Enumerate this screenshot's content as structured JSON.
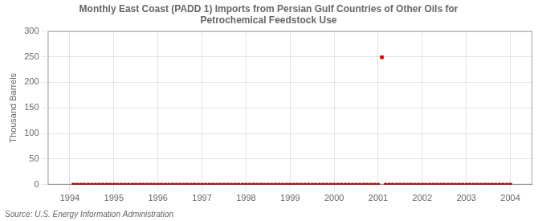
{
  "chart_data": {
    "type": "scatter",
    "title": "Monthly East Coast (PADD 1) Imports from Persian Gulf Countries of Other Oils for\nPetrochemical Feedstock Use",
    "ylabel": "Thousand Barrels",
    "annotation": "Source: U.S. Energy Information Administration",
    "color": "#cc0000",
    "marker": "square",
    "grid": true,
    "xlim": [
      1993.5,
      2004.5
    ],
    "xticks": [
      1994,
      1995,
      1996,
      1997,
      1998,
      1999,
      2000,
      2001,
      2002,
      2003,
      2004
    ],
    "ylim": [
      0,
      300
    ],
    "yticks": [
      0,
      50,
      100,
      150,
      200,
      250,
      300
    ],
    "x": [
      1994.083,
      1994.167,
      1994.25,
      1994.333,
      1994.417,
      1994.5,
      1994.583,
      1994.667,
      1994.75,
      1994.833,
      1994.917,
      1995.0,
      1995.083,
      1995.167,
      1995.25,
      1995.333,
      1995.417,
      1995.5,
      1995.583,
      1995.667,
      1995.75,
      1995.833,
      1995.917,
      1996.0,
      1996.083,
      1996.167,
      1996.25,
      1996.333,
      1996.417,
      1996.5,
      1996.583,
      1996.667,
      1996.75,
      1996.833,
      1996.917,
      1997.0,
      1997.083,
      1997.167,
      1997.25,
      1997.333,
      1997.417,
      1997.5,
      1997.583,
      1997.667,
      1997.75,
      1997.833,
      1997.917,
      1998.0,
      1998.083,
      1998.167,
      1998.25,
      1998.333,
      1998.417,
      1998.5,
      1998.583,
      1998.667,
      1998.75,
      1998.833,
      1998.917,
      1999.0,
      1999.083,
      1999.167,
      1999.25,
      1999.333,
      1999.417,
      1999.5,
      1999.583,
      1999.667,
      1999.75,
      1999.833,
      1999.917,
      2000.0,
      2000.083,
      2000.167,
      2000.25,
      2000.333,
      2000.417,
      2000.5,
      2000.583,
      2000.667,
      2000.75,
      2000.833,
      2000.917,
      2001.0,
      2001.083,
      2001.167,
      2001.25,
      2001.333,
      2001.417,
      2001.5,
      2001.583,
      2001.667,
      2001.75,
      2001.833,
      2001.917,
      2002.0,
      2002.083,
      2002.167,
      2002.25,
      2002.333,
      2002.417,
      2002.5,
      2002.583,
      2002.667,
      2002.75,
      2002.833,
      2002.917,
      2003.0,
      2003.083,
      2003.167,
      2003.25,
      2003.333,
      2003.417,
      2003.5,
      2003.583,
      2003.667,
      2003.75,
      2003.833,
      2003.917,
      2004.0
    ],
    "values": [
      0,
      0,
      0,
      0,
      0,
      0,
      0,
      0,
      0,
      0,
      0,
      0,
      0,
      0,
      0,
      0,
      0,
      0,
      0,
      0,
      0,
      0,
      0,
      0,
      0,
      0,
      0,
      0,
      0,
      0,
      0,
      0,
      0,
      0,
      0,
      0,
      0,
      0,
      0,
      0,
      0,
      0,
      0,
      0,
      0,
      0,
      0,
      0,
      0,
      0,
      0,
      0,
      0,
      0,
      0,
      0,
      0,
      0,
      0,
      0,
      0,
      0,
      0,
      0,
      0,
      0,
      0,
      0,
      0,
      0,
      0,
      0,
      0,
      0,
      0,
      0,
      0,
      0,
      0,
      0,
      0,
      0,
      0,
      0,
      249,
      0,
      0,
      0,
      0,
      0,
      0,
      0,
      0,
      0,
      0,
      0,
      0,
      0,
      0,
      0,
      0,
      0,
      0,
      0,
      0,
      0,
      0,
      0,
      0,
      0,
      0,
      0,
      0,
      0,
      0,
      0,
      0,
      0,
      0,
      0
    ]
  }
}
